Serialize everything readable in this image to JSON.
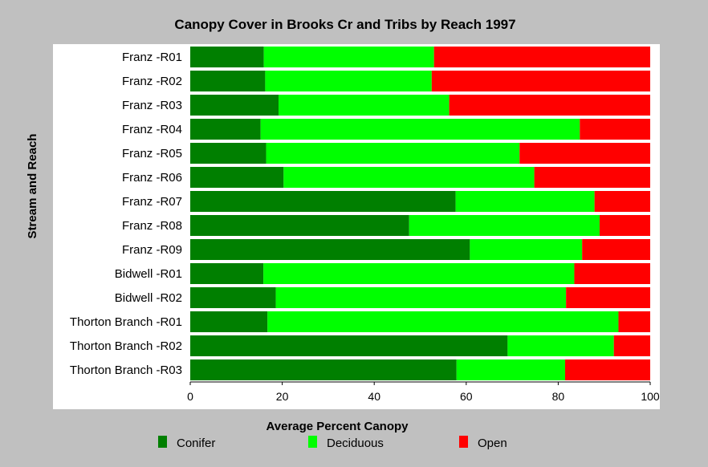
{
  "chart_data": {
    "type": "bar",
    "orientation": "horizontal",
    "stacked": true,
    "title": "Canopy Cover in Brooks Cr and Tribs by Reach 1997",
    "xlabel": "Average Percent Canopy",
    "ylabel": "Stream and Reach",
    "xlim": [
      0,
      100
    ],
    "xticks": [
      0,
      20,
      40,
      60,
      80,
      100
    ],
    "grid": false,
    "legend_position": "bottom",
    "categories": [
      "Franz -R01",
      "Franz -R02",
      "Franz -R03",
      "Franz -R04",
      "Franz -R05",
      "Franz -R06",
      "Franz -R07",
      "Franz -R08",
      "Franz -R09",
      "Bidwell -R01",
      "Bidwell -R02",
      "Thorton Branch -R01",
      "Thorton Branch -R02",
      "Thorton Branch -R03"
    ],
    "series": [
      {
        "name": "Conifer",
        "color": "#007f00",
        "values": [
          16,
          16.3,
          19.2,
          15.3,
          16.5,
          20.3,
          57.7,
          47.6,
          60.8,
          15.9,
          18.6,
          16.8,
          69,
          57.9
        ]
      },
      {
        "name": "Deciduous",
        "color": "#00ff00",
        "values": [
          37,
          36.2,
          37.1,
          69.4,
          55.1,
          54.5,
          30.2,
          41.4,
          24.4,
          67.6,
          63.1,
          76.3,
          23.1,
          23.6
        ]
      },
      {
        "name": "Open",
        "color": "#ff0000",
        "values": [
          47,
          47.5,
          43.7,
          15.3,
          28.4,
          25.2,
          12.1,
          11,
          14.8,
          16.5,
          18.3,
          6.9,
          7.9,
          18.5
        ]
      }
    ]
  }
}
